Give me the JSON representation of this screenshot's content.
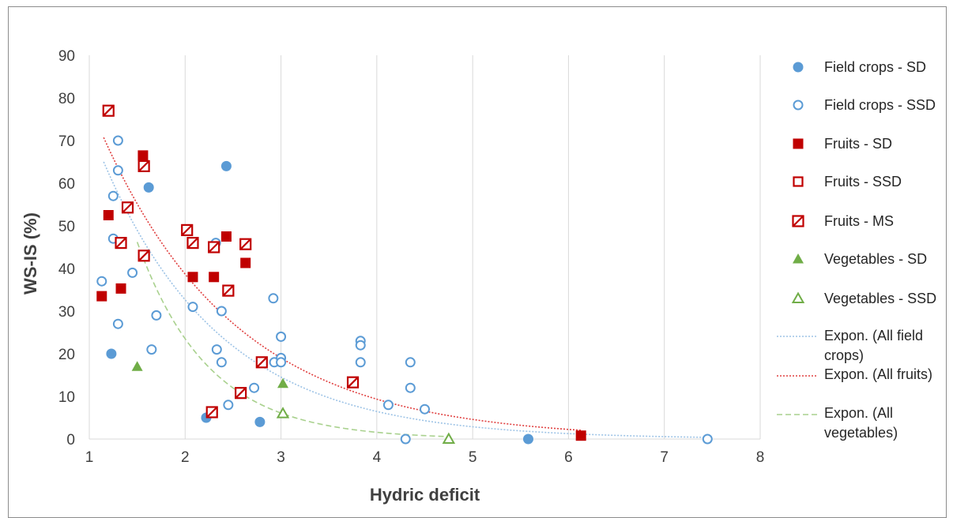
{
  "chart_data": {
    "type": "scatter",
    "title": "",
    "xlabel": "Hydric deficit",
    "ylabel": "WS-IS (%)",
    "xlim": [
      1,
      8
    ],
    "ylim": [
      0,
      90
    ],
    "xticks": [
      "1",
      "2",
      "3",
      "4",
      "5",
      "6",
      "7",
      "8"
    ],
    "yticks": [
      "0",
      "10",
      "20",
      "30",
      "40",
      "50",
      "60",
      "70",
      "80",
      "90"
    ],
    "grid": "vertical",
    "legend_position": "right",
    "colors": {
      "blue": "#5b9bd5",
      "red": "#c00000",
      "green": "#70ad47"
    },
    "series": [
      {
        "name": "Field crops - SD",
        "marker": "circle-filled",
        "color": "#5b9bd5",
        "points": [
          [
            1.23,
            20
          ],
          [
            1.62,
            59
          ],
          [
            2.43,
            64
          ],
          [
            2.22,
            5
          ],
          [
            2.78,
            4
          ],
          [
            5.58,
            0
          ]
        ]
      },
      {
        "name": "Field crops - SSD",
        "marker": "circle-open",
        "color": "#5b9bd5",
        "points": [
          [
            1.13,
            37
          ],
          [
            1.25,
            57
          ],
          [
            1.25,
            47
          ],
          [
            1.3,
            70
          ],
          [
            1.3,
            63
          ],
          [
            1.3,
            27
          ],
          [
            1.45,
            39
          ],
          [
            1.65,
            21
          ],
          [
            1.7,
            29
          ],
          [
            2.08,
            31
          ],
          [
            2.32,
            46
          ],
          [
            2.33,
            21
          ],
          [
            2.38,
            30
          ],
          [
            2.38,
            18
          ],
          [
            2.45,
            8
          ],
          [
            2.58,
            11
          ],
          [
            2.72,
            12
          ],
          [
            2.92,
            33
          ],
          [
            2.93,
            18
          ],
          [
            3.0,
            24
          ],
          [
            3.0,
            19
          ],
          [
            3.0,
            18
          ],
          [
            3.83,
            23
          ],
          [
            3.83,
            22
          ],
          [
            3.83,
            18
          ],
          [
            4.12,
            8
          ],
          [
            4.3,
            0
          ],
          [
            4.35,
            18
          ],
          [
            4.35,
            12
          ],
          [
            4.5,
            7
          ],
          [
            7.45,
            0
          ]
        ]
      },
      {
        "name": "Fruits - SD",
        "marker": "square-filled",
        "color": "#c00000",
        "points": [
          [
            1.13,
            33.5
          ],
          [
            1.2,
            52.5
          ],
          [
            1.33,
            35.3
          ],
          [
            1.56,
            66.5
          ],
          [
            2.08,
            38
          ],
          [
            2.3,
            38
          ],
          [
            2.43,
            47.5
          ],
          [
            2.63,
            41.3
          ],
          [
            6.13,
            0.8
          ]
        ]
      },
      {
        "name": "Fruits - SSD",
        "marker": "square-open",
        "color": "#c00000",
        "points": []
      },
      {
        "name": "Fruits - MS",
        "marker": "square-hatched",
        "color": "#c00000",
        "points": [
          [
            1.2,
            77
          ],
          [
            1.33,
            46
          ],
          [
            1.4,
            54.3
          ],
          [
            1.57,
            43
          ],
          [
            1.57,
            64
          ],
          [
            2.02,
            49
          ],
          [
            2.08,
            46
          ],
          [
            2.3,
            45
          ],
          [
            2.45,
            34.8
          ],
          [
            2.28,
            6.3
          ],
          [
            2.58,
            10.8
          ],
          [
            2.63,
            45.7
          ],
          [
            2.8,
            18
          ],
          [
            3.75,
            13.3
          ]
        ]
      },
      {
        "name": "Vegetables - SD",
        "marker": "triangle-filled",
        "color": "#70ad47",
        "points": [
          [
            1.5,
            17
          ],
          [
            3.02,
            13
          ]
        ]
      },
      {
        "name": "Vegetables - SSD",
        "marker": "triangle-open",
        "color": "#70ad47",
        "points": [
          [
            3.02,
            6
          ],
          [
            4.75,
            0
          ]
        ]
      }
    ],
    "trendlines": [
      {
        "name": "Expon. (All field crops)",
        "style": "dotted",
        "color": "#9dc3e6",
        "a": 165,
        "b": 0.81,
        "x_range": [
          1.15,
          7.45
        ]
      },
      {
        "name": "Expon. (All fruits)",
        "style": "dotted",
        "color": "#e04040",
        "a": 160,
        "b": 0.71,
        "x_range": [
          1.15,
          6.13
        ]
      },
      {
        "name": "Expon. (All vegetables)",
        "style": "dashed",
        "color": "#a9d18e",
        "a": 350,
        "b": 1.35,
        "x_range": [
          1.5,
          4.75
        ]
      }
    ],
    "legend": [
      "Field crops - SD",
      "Field crops - SSD",
      "Fruits - SD",
      "Fruits - SSD",
      "Fruits - MS",
      "Vegetables - SD",
      "Vegetables - SSD",
      [
        "Expon. (All field",
        "crops)"
      ],
      [
        "Expon. (All fruits)"
      ],
      [
        "Expon. (All",
        "vegetables)"
      ]
    ]
  }
}
